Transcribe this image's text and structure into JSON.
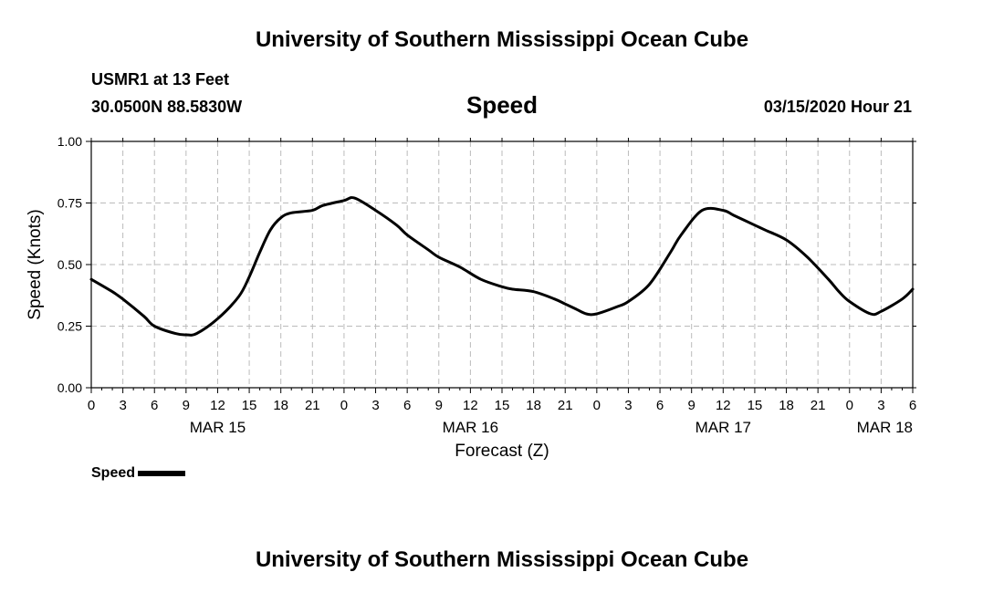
{
  "page": {
    "title_top": "University of Southern Mississippi Ocean Cube",
    "title_bottom": "University of Southern Mississippi Ocean Cube",
    "station_name": "USMR1 at 13 Feet",
    "station_coords": "30.0500N 88.5830W",
    "variable": "Speed",
    "timestamp": "03/15/2020 Hour 21",
    "legend_label": "Speed"
  },
  "chart_data": {
    "type": "line",
    "title": "Speed",
    "xlabel": "Forecast (Z)",
    "ylabel": "Speed (Knots)",
    "ylim": [
      0,
      1.0
    ],
    "yticks": [
      "0.00",
      "0.25",
      "0.50",
      "0.75",
      "1.00"
    ],
    "xlim": [
      0,
      78
    ],
    "xtick_labels": [
      "0",
      "3",
      "6",
      "9",
      "12",
      "15",
      "18",
      "21",
      "0",
      "3",
      "6",
      "9",
      "12",
      "15",
      "18",
      "21",
      "0",
      "3",
      "6",
      "9",
      "12",
      "15",
      "18",
      "21",
      "0",
      "3",
      "6"
    ],
    "date_labels": [
      {
        "label": "MAR 15",
        "at_hour": 12
      },
      {
        "label": "MAR 16",
        "at_hour": 36
      },
      {
        "label": "MAR 17",
        "at_hour": 60
      },
      {
        "label": "MAR 18",
        "at_hour": 78
      }
    ],
    "grid": true,
    "legend": "bottom-left",
    "series": [
      {
        "name": "Speed",
        "color": "#000000",
        "x": [
          0,
          2,
          3,
          5,
          6,
          8,
          9,
          10,
          12,
          14,
          15,
          16,
          17,
          18,
          19,
          21,
          22,
          24,
          25,
          27,
          29,
          30,
          32,
          33,
          35,
          37,
          39,
          40,
          42,
          44,
          45,
          46,
          47,
          48,
          50,
          51,
          53,
          55,
          56,
          58,
          60,
          61,
          63,
          64,
          66,
          68,
          70,
          71,
          72,
          74,
          75,
          77,
          78
        ],
        "y": [
          0.44,
          0.39,
          0.36,
          0.29,
          0.25,
          0.22,
          0.215,
          0.22,
          0.28,
          0.37,
          0.45,
          0.55,
          0.64,
          0.69,
          0.71,
          0.72,
          0.74,
          0.76,
          0.77,
          0.72,
          0.66,
          0.62,
          0.56,
          0.53,
          0.49,
          0.44,
          0.41,
          0.4,
          0.39,
          0.36,
          0.34,
          0.32,
          0.3,
          0.3,
          0.33,
          0.35,
          0.42,
          0.55,
          0.62,
          0.72,
          0.72,
          0.7,
          0.66,
          0.64,
          0.6,
          0.53,
          0.44,
          0.39,
          0.35,
          0.3,
          0.31,
          0.36,
          0.4
        ]
      }
    ]
  }
}
